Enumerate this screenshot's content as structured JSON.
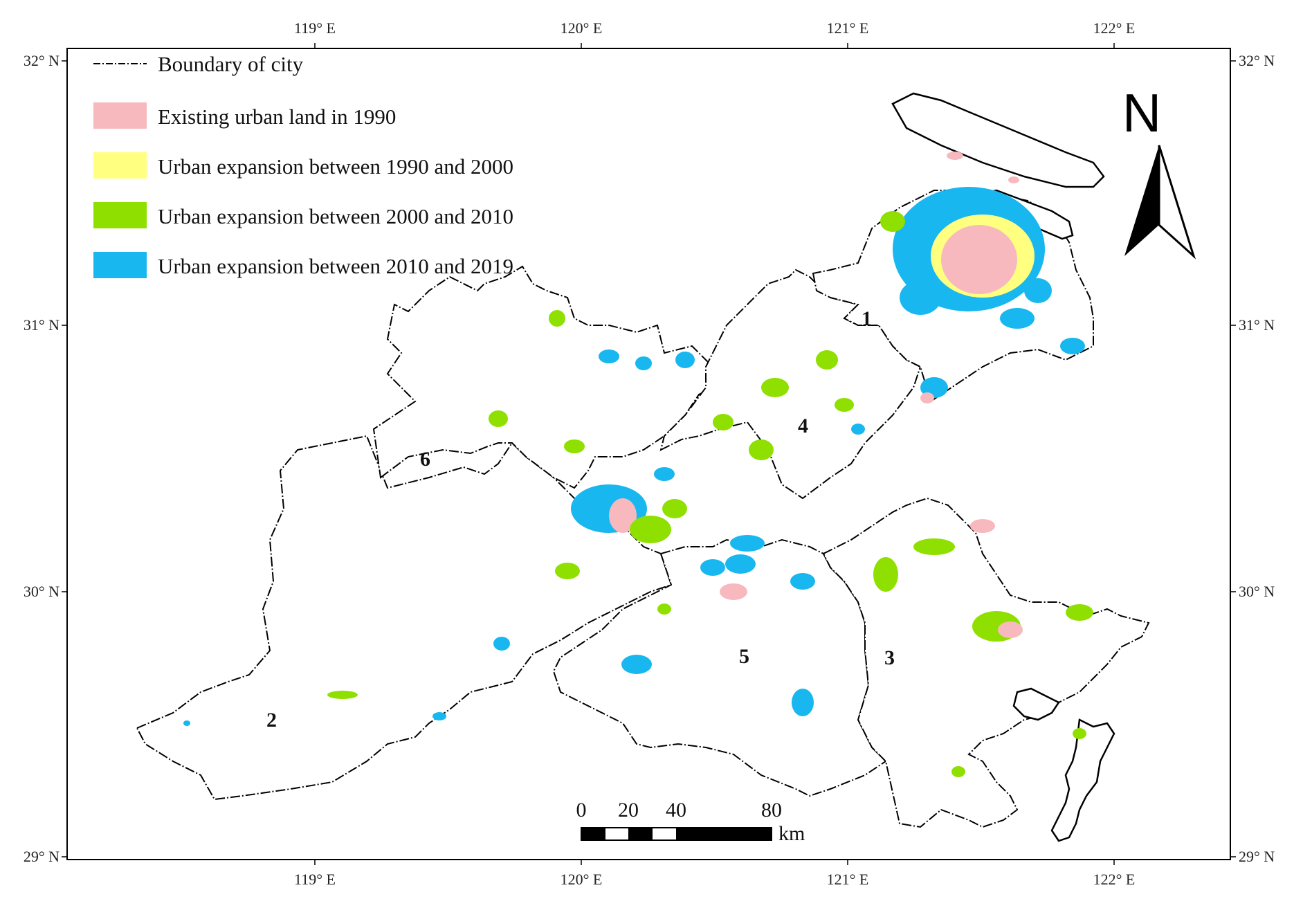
{
  "axes": {
    "top_ticks": [
      "119° E",
      "120° E",
      "121° E",
      "122° E"
    ],
    "bottom_ticks": [
      "119° E",
      "120° E",
      "121° E",
      "122° E"
    ],
    "left_ticks": [
      "32° N",
      "31° N",
      "30° N",
      "29° N"
    ],
    "right_ticks": [
      "32° N",
      "31° N",
      "30° N",
      "29° N"
    ]
  },
  "legend": {
    "boundary_label": "Boundary of city",
    "items": [
      {
        "label": "Existing urban land in 1990",
        "color": "#f7b9be"
      },
      {
        "label": "Urban expansion between 1990 and 2000",
        "color": "#ffff80"
      },
      {
        "label": "Urban expansion between 2000 and 2010",
        "color": "#8fe000"
      },
      {
        "label": "Urban expansion between 2010 and 2019",
        "color": "#19b7ef"
      }
    ]
  },
  "north_arrow": {
    "letter": "N",
    "icon": "north-arrow-icon"
  },
  "regions": [
    "1",
    "2",
    "3",
    "4",
    "5",
    "6"
  ],
  "scale_bar": {
    "labels": [
      "0",
      "20",
      "40",
      "80"
    ],
    "unit": "km"
  }
}
